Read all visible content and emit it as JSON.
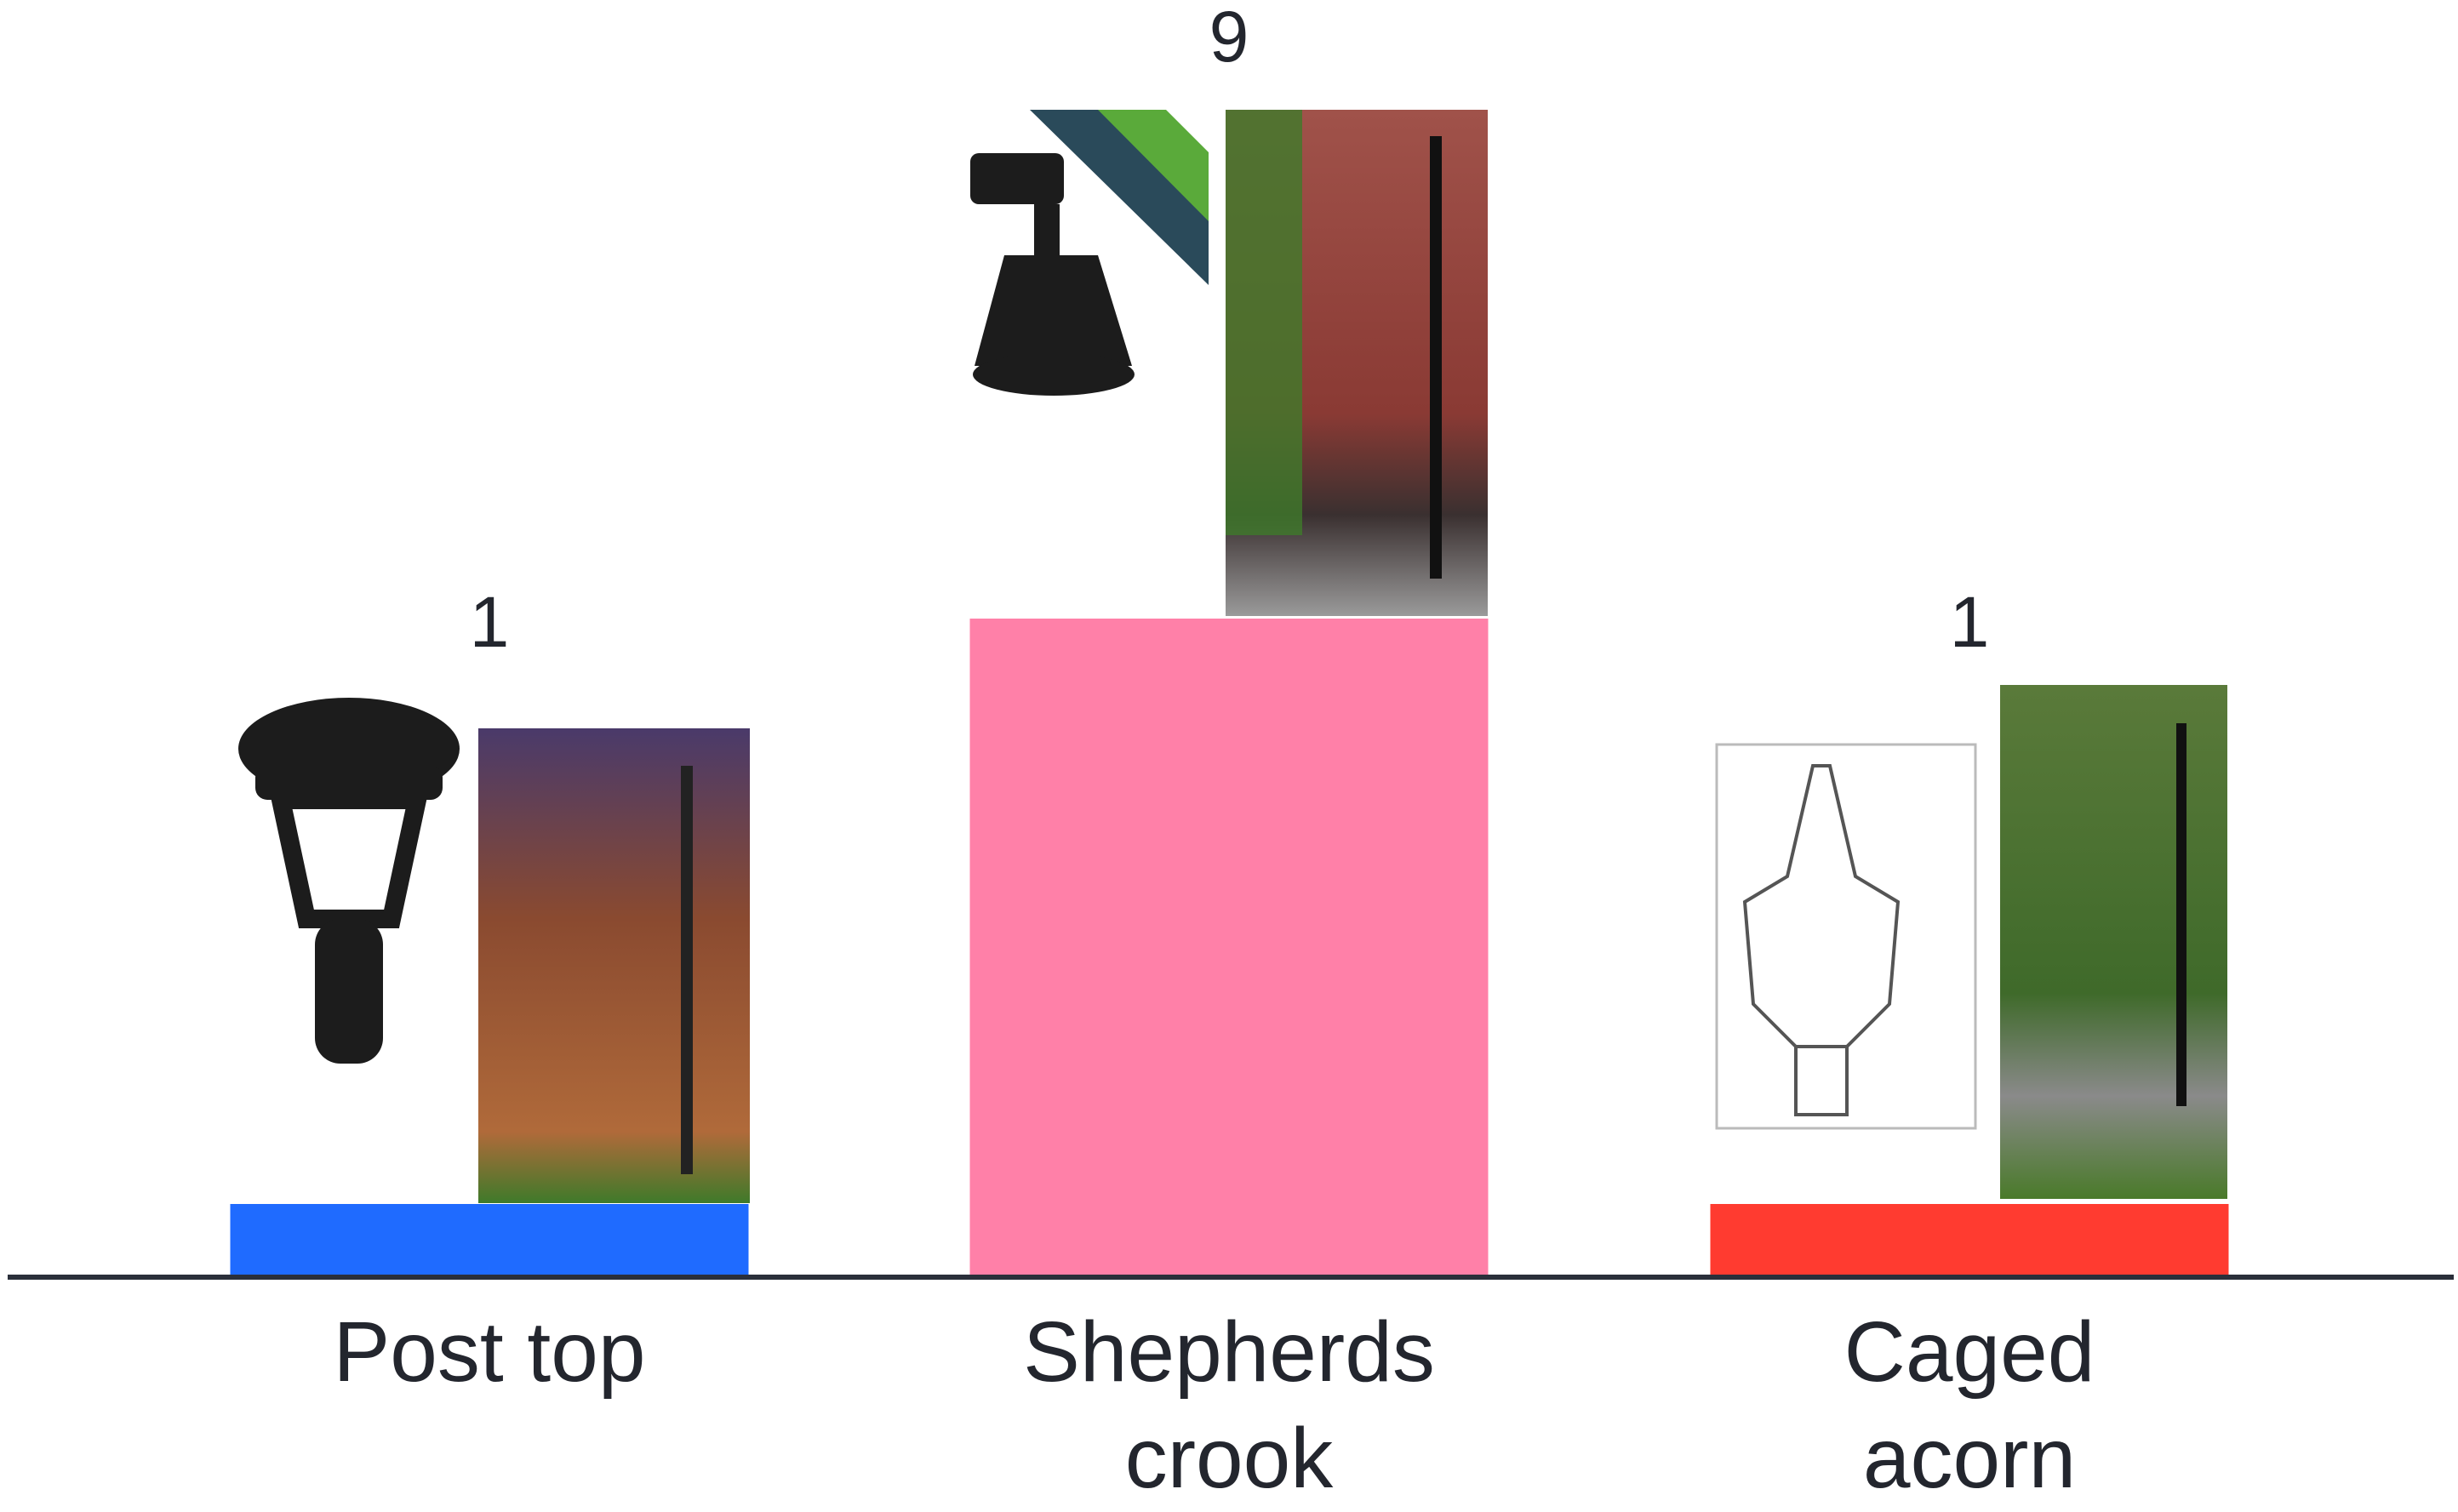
{
  "chart_data": {
    "type": "bar",
    "categories": [
      "Post top",
      "Shepherds crook",
      "Caged acorn"
    ],
    "values": [
      1,
      9,
      1
    ],
    "colors": [
      "#1f6bff",
      "#ff80a8",
      "#ff3b30"
    ]
  }
}
